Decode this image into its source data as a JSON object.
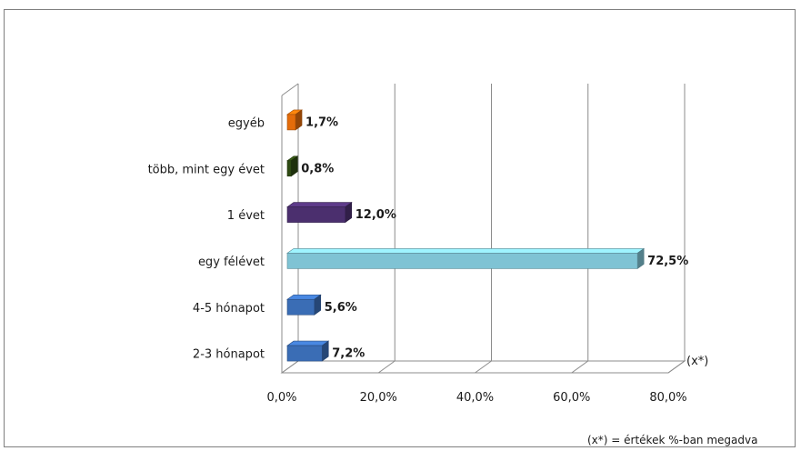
{
  "chart_data": {
    "type": "bar",
    "orientation": "horizontal",
    "style": "3d",
    "categories": [
      "egyéb",
      "több, mint egy évet",
      "1 évet",
      "egy félévet",
      "4-5 hónapot",
      "2-3 hónapot"
    ],
    "values": [
      1.7,
      0.8,
      12.0,
      72.5,
      5.6,
      7.2
    ],
    "value_labels": [
      "1,7%",
      "0,8%",
      "12,0%",
      "72,5%",
      "5,6%",
      "7,2%"
    ],
    "colors": [
      "#E46C0A",
      "#2E4A12",
      "#4B2F6E",
      "#7FC3D4",
      "#3A6DB5",
      "#3A6DB5"
    ],
    "xlim": [
      0,
      80
    ],
    "xticks": [
      0,
      20,
      40,
      60,
      80
    ],
    "xtick_labels": [
      "0,0%",
      "20,0%",
      "40,0%",
      "60,0%",
      "80,0%"
    ],
    "grid": true,
    "unit_note": "(x*)",
    "footnote": "(x*) = értékek %-ban megadva"
  }
}
